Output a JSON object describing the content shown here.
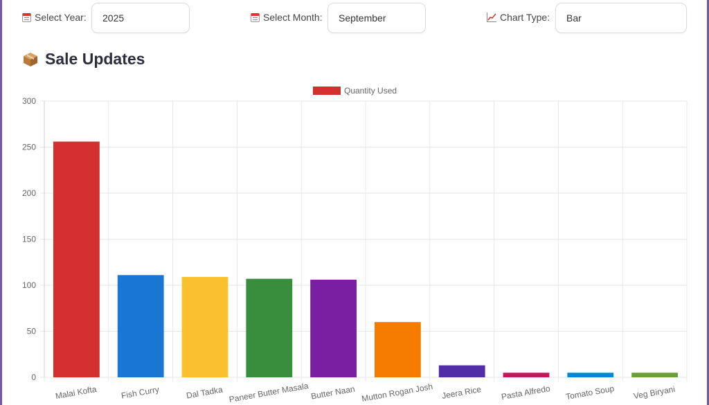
{
  "filters": {
    "year_label": "Select Year:",
    "year_value": "2025",
    "month_label": "Select Month:",
    "month_value": "September",
    "type_label": "Chart Type:",
    "type_value": "Bar"
  },
  "icons": {
    "year": "calendar-icon",
    "month": "calendar-icon",
    "type": "chart-increasing-icon",
    "title": "package-icon"
  },
  "section_title": "Sale Updates",
  "chart_data": {
    "type": "bar",
    "categories": [
      "Malai Kofta",
      "Fish Curry",
      "Dal Tadka",
      "Paneer Butter Masala",
      "Butter Naan",
      "Mutton Rogan Josh",
      "Jeera Rice",
      "Pasta Alfredo",
      "Tomato Soup",
      "Veg Biryani"
    ],
    "series": [
      {
        "name": "Quantity Used",
        "values": [
          256,
          111,
          109,
          107,
          106,
          60,
          13,
          5,
          5,
          5
        ]
      }
    ],
    "colors": [
      "#d32f2f",
      "#1976d2",
      "#fbc02d",
      "#388e3c",
      "#7b1fa2",
      "#f57c00",
      "#512da8",
      "#c2185b",
      "#0288d1",
      "#689f38"
    ],
    "legend_color": "#d32f2f",
    "ylim": [
      0,
      300
    ],
    "yticks": [
      0,
      50,
      100,
      150,
      200,
      250,
      300
    ],
    "grid": true,
    "legend_position": "top-center"
  }
}
